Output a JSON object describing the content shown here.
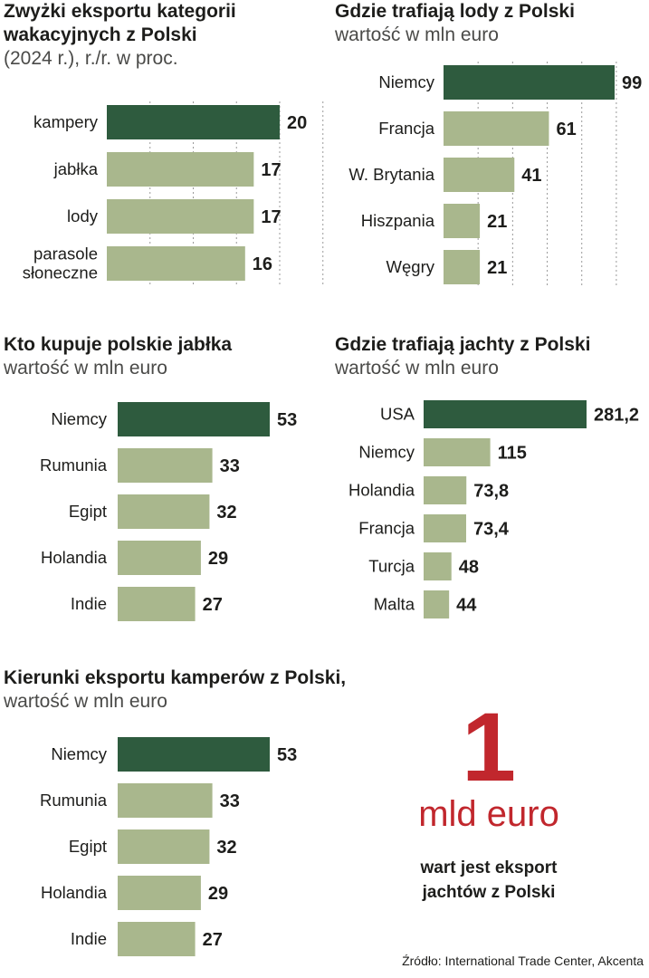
{
  "colors": {
    "highlight": "#2e5b3e",
    "bar": "#a9b78d",
    "accent": "#c1272d"
  },
  "chart_data": [
    {
      "type": "bar",
      "orientation": "horizontal",
      "title": "Zwyżki eksportu kategorii wakacyjnych z Polski",
      "subtitle": "(2024 r.), r./r. w proc.",
      "categories": [
        "kampery",
        "jabłka",
        "lody",
        "parasole\nsłoneczne"
      ],
      "values": [
        20,
        17,
        17,
        16
      ],
      "value_labels": [
        "20",
        "17",
        "17",
        "16"
      ],
      "highlight_index": 0,
      "grid": true
    },
    {
      "type": "bar",
      "orientation": "horizontal",
      "title": "Gdzie trafiają lody z Polski",
      "subtitle": "wartość w mln euro",
      "categories": [
        "Niemcy",
        "Francja",
        "W. Brytania",
        "Hiszpania",
        "Węgry"
      ],
      "values": [
        99,
        61,
        41,
        21,
        21
      ],
      "value_labels": [
        "99",
        "61",
        "41",
        "21",
        "21"
      ],
      "highlight_index": 0,
      "grid": true
    },
    {
      "type": "bar",
      "orientation": "horizontal",
      "title": "Kto kupuje polskie jabłka",
      "subtitle": "wartość w mln euro",
      "categories": [
        "Niemcy",
        "Rumunia",
        "Egipt",
        "Holandia",
        "Indie"
      ],
      "values": [
        53,
        33,
        32,
        29,
        27
      ],
      "value_labels": [
        "53",
        "33",
        "32",
        "29",
        "27"
      ],
      "highlight_index": 0,
      "grid": false
    },
    {
      "type": "bar",
      "orientation": "horizontal",
      "title": "Gdzie trafiają jachty z Polski",
      "subtitle": "wartość w mln euro",
      "categories": [
        "USA",
        "Niemcy",
        "Holandia",
        "Francja",
        "Turcja",
        "Malta"
      ],
      "values": [
        281.2,
        115,
        73.8,
        73.4,
        48,
        44
      ],
      "value_labels": [
        "281,2",
        "115",
        "73,8",
        "73,4",
        "48",
        "44"
      ],
      "highlight_index": 0,
      "grid": false
    },
    {
      "type": "bar",
      "orientation": "horizontal",
      "title": "Kierunki eksportu kamperów z Polski,",
      "subtitle": "wartość w mln euro",
      "categories": [
        "Niemcy",
        "Rumunia",
        "Egipt",
        "Holandia",
        "Indie"
      ],
      "values": [
        53,
        33,
        32,
        29,
        27
      ],
      "value_labels": [
        "53",
        "33",
        "32",
        "29",
        "27"
      ],
      "highlight_index": 0,
      "grid": false
    }
  ],
  "callout": {
    "number": "1",
    "unit": "mld euro",
    "text": "wart jest eksport jachtów z Polski"
  },
  "source": "Źródło: International Trade Center, Akcenta"
}
